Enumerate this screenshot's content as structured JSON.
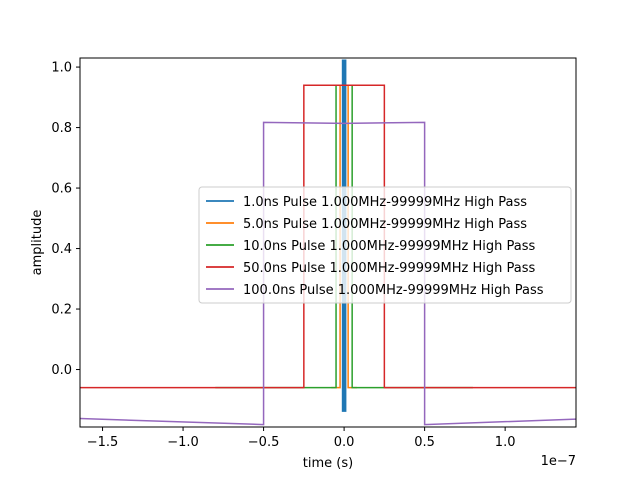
{
  "chart_data": {
    "type": "line",
    "xlabel": "time (s)",
    "ylabel": "amplitude",
    "x_offset_label": "1e−7",
    "x_scale": 1e-07,
    "xlim": [
      -1.64e-07,
      1.44e-07
    ],
    "ylim": [
      -0.19,
      1.03
    ],
    "x_ticks": [
      -1.5e-07,
      -1e-07,
      -5e-08,
      0,
      5e-08,
      1e-07
    ],
    "x_tick_labels": [
      "−1.5",
      "−1.0",
      "−0.5",
      "0.0",
      "0.5",
      "1.0"
    ],
    "y_ticks": [
      0.0,
      0.2,
      0.4,
      0.6,
      0.8,
      1.0
    ],
    "y_tick_labels": [
      "0.0",
      "0.2",
      "0.4",
      "0.6",
      "0.8",
      "1.0"
    ],
    "grid": false,
    "legend_position": "center-right",
    "series": [
      {
        "name": "1.0ns Pulse 1.000MHz-99999MHz High Pass",
        "color": "#1f77b4",
        "line_width": 3,
        "x": [
          -5e-10,
          -5e-10,
          5e-10,
          5e-10
        ],
        "y": [
          -0.14,
          1.02,
          1.02,
          -0.14
        ]
      },
      {
        "name": "5.0ns Pulse 1.000MHz-99999MHz High Pass",
        "color": "#ff7f0e",
        "line_width": 1.5,
        "x": [
          -8e-09,
          -2.5e-09,
          -2.5e-09,
          2.5e-09,
          2.5e-09,
          8e-09
        ],
        "y": [
          -0.06,
          -0.06,
          0.94,
          0.94,
          -0.06,
          -0.06
        ]
      },
      {
        "name": "10.0ns Pulse 1.000MHz-99999MHz High Pass",
        "color": "#2ca02c",
        "line_width": 1.5,
        "x": [
          -8e-08,
          -5e-09,
          -5e-09,
          5e-09,
          5e-09,
          8e-08
        ],
        "y": [
          -0.06,
          -0.06,
          0.94,
          0.94,
          -0.06,
          -0.06
        ]
      },
      {
        "name": "50.0ns Pulse 1.000MHz-99999MHz High Pass",
        "color": "#d62728",
        "line_width": 1.5,
        "x": [
          -1.64e-07,
          -2.5e-08,
          -2.5e-08,
          2.5e-08,
          2.5e-08,
          1.44e-07
        ],
        "y": [
          -0.06,
          -0.06,
          0.94,
          0.94,
          -0.06,
          -0.06
        ]
      },
      {
        "name": "100.0ns Pulse 1.000MHz-99999MHz High Pass",
        "color": "#9467bd",
        "line_width": 1.5,
        "x": [
          -1.64e-07,
          -5e-08,
          -5e-08,
          0,
          5e-08,
          5e-08,
          1.44e-07
        ],
        "y": [
          -0.162,
          -0.182,
          0.817,
          0.814,
          0.817,
          -0.182,
          -0.164
        ]
      }
    ]
  }
}
